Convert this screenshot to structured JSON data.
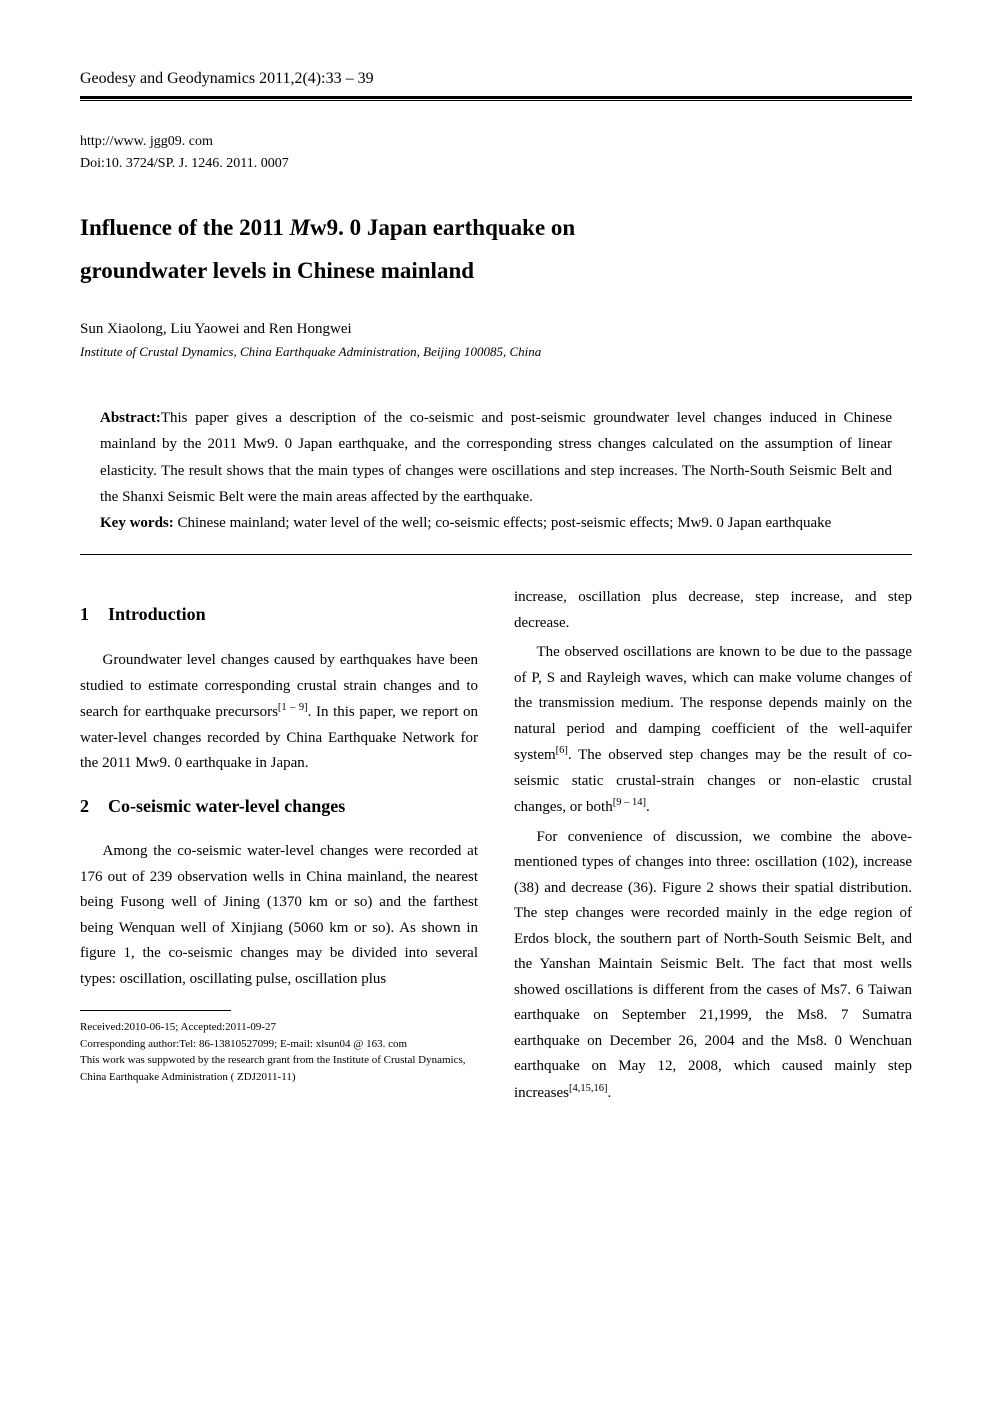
{
  "journal_header": "Geodesy and Geodynamics   2011,2(4):33 – 39",
  "url": "http://www. jgg09. com",
  "doi": "Doi:10. 3724/SP. J. 1246. 2011. 0007",
  "title_line1": "Influence of the 2011 Mw9. 0 Japan earthquake on",
  "title_line2": "groundwater levels in Chinese mainland",
  "authors": "Sun Xiaolong, Liu Yaowei and Ren Hongwei",
  "affiliation": "Institute of Crustal Dynamics, China Earthquake Administration, Beijing 100085, China",
  "abstract_label": "Abstract:",
  "abstract_text": "This paper gives a description of the co-seismic and post-seismic groundwater level changes induced in Chinese mainland by the 2011 Mw9. 0 Japan earthquake, and the corresponding stress changes calculated on the assumption of linear elasticity. The result shows that the main types of changes were oscillations and step increases. The North-South Seismic Belt and the Shanxi Seismic Belt were the main areas affected by the earthquake.",
  "keywords_label": "Key words:",
  "keywords_text": " Chinese mainland; water level of the well; co-seismic effects; post-seismic effects; Mw9. 0 Japan earthquake",
  "sec1_num": "1",
  "sec1_title": "Introduction",
  "sec1_p1_a": "Groundwater level changes caused by earthquakes have been studied to estimate corresponding crustal strain changes and to search for earthquake precursors",
  "sec1_p1_sup": "[1 – 9]",
  "sec1_p1_b": ". In this paper, we report on water-level changes recorded by China Earthquake Network for the 2011 Mw9. 0 earthquake in Japan.",
  "sec2_num": "2",
  "sec2_title": "Co-seismic water-level changes",
  "sec2_p1": "Among the co-seismic water-level changes were recorded at 176 out of 239 observation wells in China mainland, the nearest being Fusong well of Jining (1370 km or so) and the farthest being Wenquan well of Xinjiang (5060 km or so). As shown in figure 1, the co-seismic changes may be divided into several types: oscillation, oscillating pulse, oscillation plus",
  "col2_p1": "increase, oscillation plus decrease, step increase, and step decrease.",
  "col2_p2_a": "The observed oscillations are known to be due to the passage of P, S and Rayleigh waves, which can make volume changes of the transmission medium. The response depends mainly on the natural period and damping coefficient of the well-aquifer system",
  "col2_p2_sup1": "[6]",
  "col2_p2_b": ". The observed step changes may be the result of co-seismic static crustal-strain changes or non-elastic crustal changes, or both",
  "col2_p2_sup2": "[9 – 14]",
  "col2_p2_c": ".",
  "col2_p3_a": "For convenience of discussion, we combine the above-mentioned types of changes into three: oscillation (102), increase (38) and decrease (36). Figure 2 shows their spatial distribution. The step changes were recorded mainly in the edge region of Erdos block, the southern part of North-South Seismic Belt, and the Yanshan Maintain Seismic Belt. The fact that most wells showed oscillations is different from the cases of Ms7. 6 Taiwan earthquake on September 21,1999, the Ms8. 7 Sumatra earthquake on December 26, 2004 and the Ms8. 0 Wenchuan earthquake on May 12, 2008, which caused mainly step increases",
  "col2_p3_sup": "[4,15,16]",
  "col2_p3_b": ".",
  "fn1": "Received:2010-06-15; Accepted:2011-09-27",
  "fn2": "Corresponding author:Tel: 86-13810527099; E-mail: xlsun04 @ 163. com",
  "fn3": "This work was suppwoted by the research grant from the Institute of Crustal Dynamics, China Earthquake Administration ( ZDJ2011-11)"
}
